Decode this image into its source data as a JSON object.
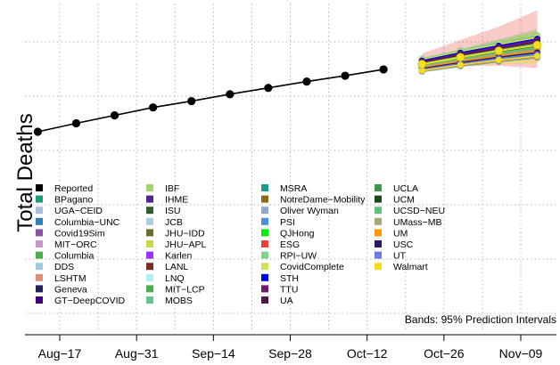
{
  "chart_data": {
    "type": "line",
    "ylabel": "Total Deaths",
    "x_tick_labels": [
      "Aug−17",
      "Aug−31",
      "Sep−14",
      "Sep−28",
      "Oct−12",
      "Oct−26",
      "Nov−09"
    ],
    "x_ticks_days": [
      0,
      14,
      28,
      42,
      56,
      70,
      84
    ],
    "y_axis_values_hidden": true,
    "grid": true,
    "grid_style": "dotted",
    "reported": {
      "name": "Reported",
      "color": "#000000",
      "days": [
        -4,
        3,
        10,
        17,
        24,
        31,
        38,
        45,
        52,
        59
      ],
      "values": [
        162000,
        170000,
        177500,
        185000,
        191000,
        197500,
        203500,
        209500,
        215000,
        221000
      ]
    },
    "forecast": {
      "days": [
        66,
        73,
        80,
        87
      ],
      "ensemble_values": [
        226000,
        232500,
        238500,
        244000
      ],
      "spread_low": [
        219000,
        224000,
        228500,
        232000
      ],
      "spread_high": [
        231000,
        239000,
        246000,
        253000
      ]
    },
    "bands_note": "Bands: 95% Prediction Intervals",
    "legend_placement": "lower-left, inside plot, 4 columns",
    "legend": [
      {
        "label": "Reported",
        "color": "#000000"
      },
      {
        "label": "BPagano",
        "color": "#1b9e77"
      },
      {
        "label": "UGA−CEID",
        "color": "#a6bddb"
      },
      {
        "label": "Columbia−UNC",
        "color": "#2c7fb8"
      },
      {
        "label": "Covid19Sim",
        "color": "#8856a7"
      },
      {
        "label": "MIT−ORC",
        "color": "#c994c7"
      },
      {
        "label": "Columbia",
        "color": "#4daf4a"
      },
      {
        "label": "DDS",
        "color": "#9ecae1"
      },
      {
        "label": "LSHTM",
        "color": "#e08e79"
      },
      {
        "label": "Geneva",
        "color": "#2d1e5a"
      },
      {
        "label": "GT−DeepCOVID",
        "color": "#3f007d"
      },
      {
        "label": "IBF",
        "color": "#a1d76a"
      },
      {
        "label": "IHME",
        "color": "#54278f"
      },
      {
        "label": "ISU",
        "color": "#2e5d2e"
      },
      {
        "label": "JCB",
        "color": "#a9cce3"
      },
      {
        "label": "JHU−IDD",
        "color": "#6b6b2a"
      },
      {
        "label": "JHU−APL",
        "color": "#c7d54b"
      },
      {
        "label": "Karlen",
        "color": "#9b30ff"
      },
      {
        "label": "LANL",
        "color": "#7b2d26"
      },
      {
        "label": "LNQ",
        "color": "#b2ebf2"
      },
      {
        "label": "MIT−LCP",
        "color": "#4daf4a"
      },
      {
        "label": "MOBS",
        "color": "#66c28e"
      },
      {
        "label": "MSRA",
        "color": "#1a9a8a"
      },
      {
        "label": "NotreDame−Mobility",
        "color": "#8b6914"
      },
      {
        "label": "Oliver Wyman",
        "color": "#8fa8c8"
      },
      {
        "label": "PSI",
        "color": "#4a90d9"
      },
      {
        "label": "QJHong",
        "color": "#00ee00"
      },
      {
        "label": "ESG",
        "color": "#e8433a"
      },
      {
        "label": "RPI−UW",
        "color": "#7fd18b"
      },
      {
        "label": "CovidComplete",
        "color": "#d4e157"
      },
      {
        "label": "STH",
        "color": "#0000ee"
      },
      {
        "label": "TTU",
        "color": "#6a1b6a"
      },
      {
        "label": "UA",
        "color": "#4a1a4a"
      },
      {
        "label": "UCLA",
        "color": "#3a9a4a"
      },
      {
        "label": "UCM",
        "color": "#1a4a1a"
      },
      {
        "label": "UCSD−NEU",
        "color": "#5fc47a"
      },
      {
        "label": "UMass−MB",
        "color": "#a8a878"
      },
      {
        "label": "UM",
        "color": "#ff9900"
      },
      {
        "label": "USC",
        "color": "#2a1a6a"
      },
      {
        "label": "UT",
        "color": "#6a7ae0"
      },
      {
        "label": "Walmart",
        "color": "#f0e020"
      }
    ]
  }
}
